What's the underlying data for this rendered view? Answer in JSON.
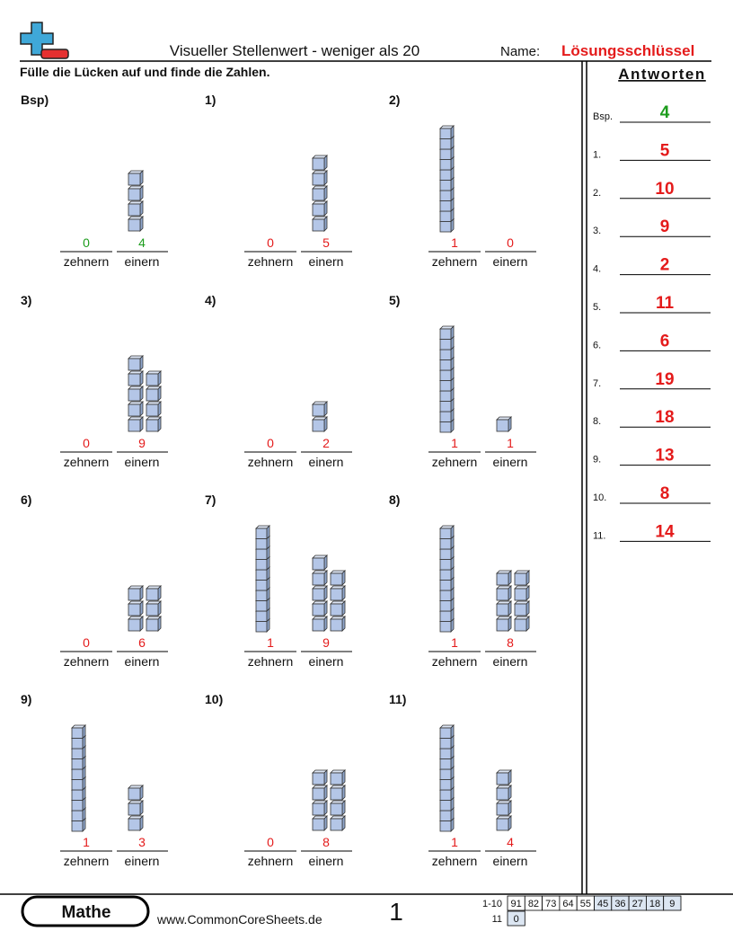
{
  "header": {
    "title": "Visueller Stellenwert - weniger als 20",
    "name_label": "Name:",
    "answer_key": "Lösungsschlüssel"
  },
  "instructions": "Fülle die Lücken auf und finde die Zahlen.",
  "tens_label": "zehnern",
  "ones_label": "einern",
  "problems": [
    {
      "label": "Bsp)",
      "tens": 0,
      "ones": 4
    },
    {
      "label": "1)",
      "tens": 0,
      "ones": 5
    },
    {
      "label": "2)",
      "tens": 1,
      "ones": 0
    },
    {
      "label": "3)",
      "tens": 0,
      "ones": 9
    },
    {
      "label": "4)",
      "tens": 0,
      "ones": 2
    },
    {
      "label": "5)",
      "tens": 1,
      "ones": 1
    },
    {
      "label": "6)",
      "tens": 0,
      "ones": 6
    },
    {
      "label": "7)",
      "tens": 1,
      "ones": 9
    },
    {
      "label": "8)",
      "tens": 1,
      "ones": 8
    },
    {
      "label": "9)",
      "tens": 1,
      "ones": 3
    },
    {
      "label": "10)",
      "tens": 0,
      "ones": 8
    },
    {
      "label": "11)",
      "tens": 1,
      "ones": 4
    }
  ],
  "answers": {
    "title": "Antworten",
    "items": [
      {
        "label": "Bsp.",
        "value": 4
      },
      {
        "label": "1.",
        "value": 5
      },
      {
        "label": "2.",
        "value": 10
      },
      {
        "label": "3.",
        "value": 9
      },
      {
        "label": "4.",
        "value": 2
      },
      {
        "label": "5.",
        "value": 11
      },
      {
        "label": "6.",
        "value": 6
      },
      {
        "label": "7.",
        "value": 19
      },
      {
        "label": "8.",
        "value": 18
      },
      {
        "label": "9.",
        "value": 13
      },
      {
        "label": "10.",
        "value": 8
      },
      {
        "label": "11.",
        "value": 14
      }
    ]
  },
  "footer": {
    "subject": "Mathe",
    "website": "www.CommonCoreSheets.de",
    "page": "1",
    "score_rows": [
      {
        "label": "1-10",
        "cells": [
          91,
          82,
          73,
          64,
          55,
          45,
          36,
          27,
          18,
          9
        ]
      },
      {
        "label": "11",
        "cells": [
          0
        ]
      }
    ]
  }
}
